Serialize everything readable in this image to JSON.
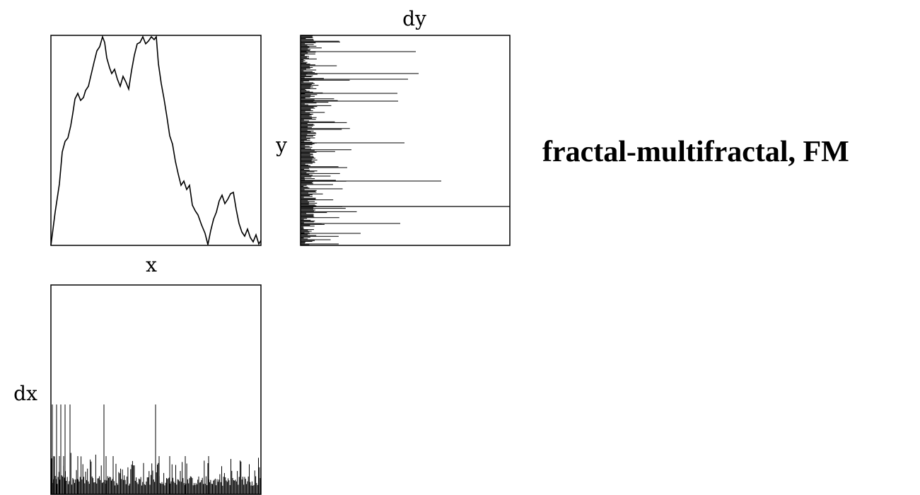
{
  "labels": {
    "dy": "dy",
    "y": "y",
    "x": "x",
    "dx": "dx"
  },
  "title": "fractal-multifractal, FM"
}
